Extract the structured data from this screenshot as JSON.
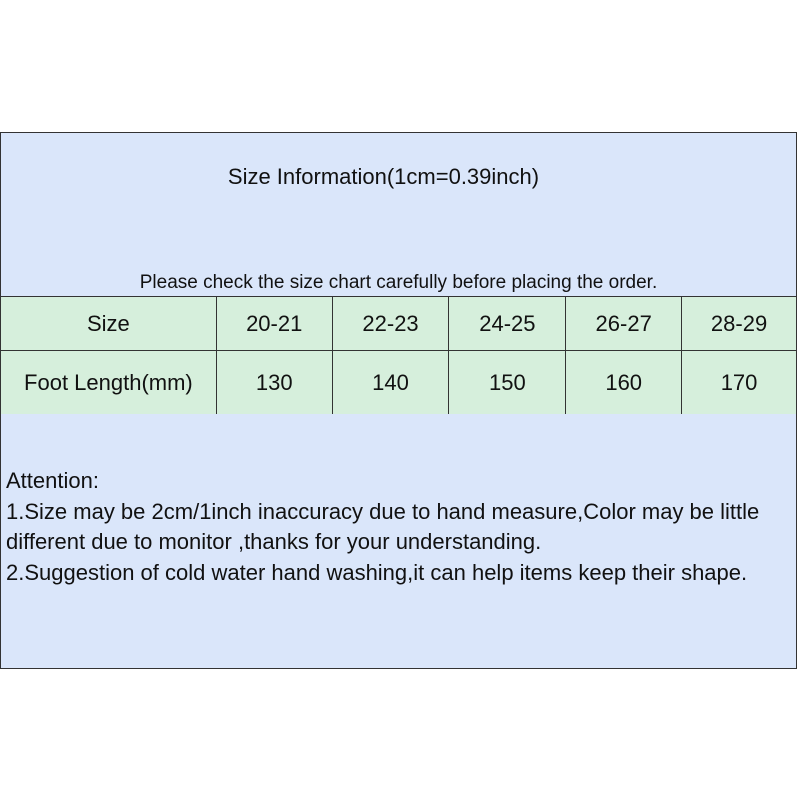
{
  "title": "Size Information(1cm=0.39inch)",
  "note": "Please check the size chart carefully before placing the order.",
  "table": {
    "headers": [
      "Size",
      "20-21",
      "22-23",
      "24-25",
      "26-27",
      "28-29"
    ],
    "row": [
      "Foot Length(mm)",
      "130",
      "140",
      "150",
      "160",
      "170"
    ]
  },
  "attention": {
    "heading": "Attention:",
    "lines": [
      "1.Size may be 2cm/1inch inaccuracy due to hand measure,Color may be little different due to monitor ,thanks for your understanding.",
      "2.Suggestion of cold water hand washing,it can help items keep their shape."
    ]
  },
  "colors": {
    "blue": "#dae6fa",
    "green": "#d6efdc"
  }
}
